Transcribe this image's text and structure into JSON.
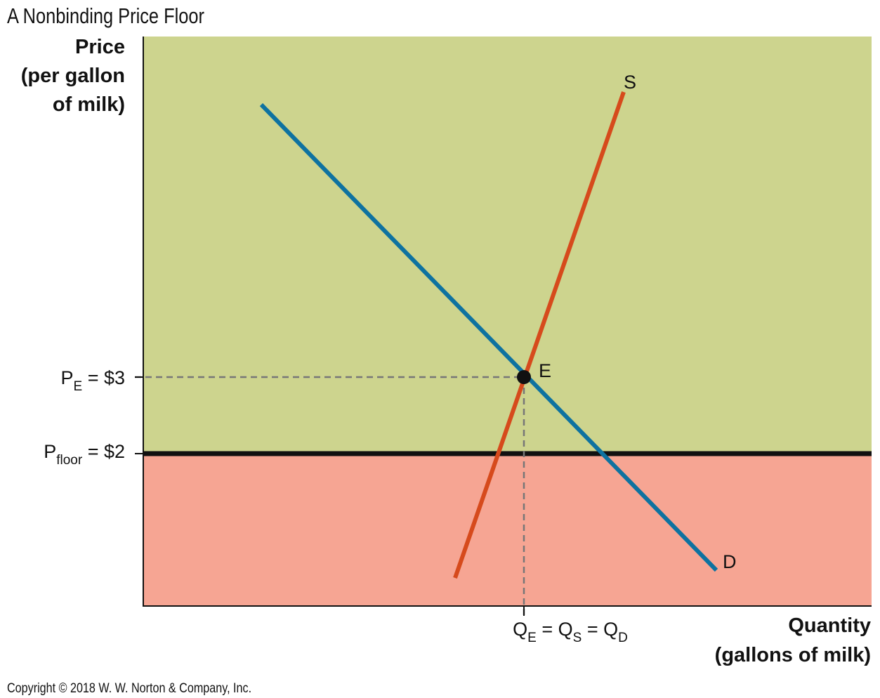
{
  "title": "A Nonbinding Price Floor",
  "y_axis_title": [
    "Price",
    "(per gallon",
    "of milk)"
  ],
  "x_axis_title": [
    "Quantity",
    "(gallons of milk)"
  ],
  "curves": {
    "supply": {
      "label": "S",
      "color": "#d64a1c"
    },
    "demand": {
      "label": "D",
      "color": "#0e72a0"
    }
  },
  "equilibrium": {
    "label": "E"
  },
  "price_labels": {
    "pe": {
      "main": "P",
      "sub": "E",
      "rest": " = $3"
    },
    "floor": {
      "main": "P",
      "sub": "floor",
      "rest": " = $2"
    }
  },
  "quantity_label": {
    "q1": "Q",
    "s1": "E",
    "eq1": " = Q",
    "s2": "S",
    "eq2": " = Q",
    "s3": "D"
  },
  "regions": {
    "above_floor_color": "#cdd48e",
    "below_floor_color": "#f6a593"
  },
  "copyright": "Copyright © 2018 W. W. Norton & Company, Inc."
}
